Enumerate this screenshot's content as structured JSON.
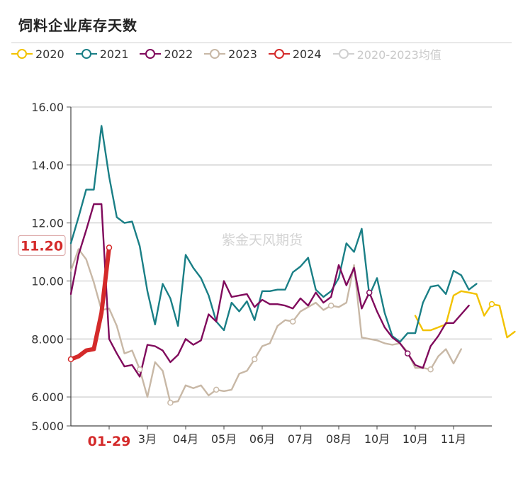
{
  "title": "饲料企业库存天数",
  "watermark": "紫金天风期货",
  "legend": [
    {
      "name": "2020",
      "color": "#f2c200",
      "faded": false
    },
    {
      "name": "2021",
      "color": "#1a7f86",
      "faded": false
    },
    {
      "name": "2022",
      "color": "#800a5c",
      "faded": false
    },
    {
      "name": "2023",
      "color": "#c8b8a6",
      "faded": false
    },
    {
      "name": "2024",
      "color": "#d42a2a",
      "faded": false
    },
    {
      "name": "2020-2023均值",
      "color": "#d0d0d0",
      "faded": true
    }
  ],
  "chart_data": {
    "type": "line",
    "title": "饲料企业库存天数",
    "ylim": [
      5.0,
      16.0
    ],
    "y_ticks": [
      "5.000",
      "6.000",
      "8.000",
      "10.00",
      "12.00",
      "14.00",
      "16.00"
    ],
    "x_ticks": [
      "01-29",
      "3月",
      "04月",
      "05月",
      "06月",
      "07月",
      "08月",
      "10月",
      "10月",
      "11月"
    ],
    "pointer": {
      "x_label": "01-29",
      "y_label": "11.20"
    },
    "series": [
      {
        "name": "2020",
        "color": "#f2c200",
        "values": [
          null,
          null,
          null,
          null,
          null,
          null,
          null,
          null,
          null,
          null,
          null,
          null,
          null,
          null,
          null,
          null,
          null,
          null,
          null,
          null,
          null,
          null,
          null,
          null,
          null,
          null,
          null,
          null,
          null,
          null,
          null,
          null,
          null,
          null,
          null,
          null,
          null,
          null,
          null,
          null,
          null,
          null,
          null,
          null,
          null,
          8.8,
          8.3,
          8.3,
          8.4,
          8.5,
          9.5,
          9.65,
          9.6,
          9.55,
          8.8,
          9.2,
          9.15,
          8.05,
          8.25
        ]
      },
      {
        "name": "2021",
        "color": "#1a7f86",
        "values": [
          11.3,
          12.2,
          13.15,
          13.15,
          15.35,
          13.6,
          12.2,
          12.0,
          12.05,
          11.2,
          9.65,
          8.5,
          9.9,
          9.4,
          8.45,
          10.9,
          10.45,
          10.1,
          9.5,
          8.6,
          8.3,
          9.25,
          8.95,
          9.3,
          8.65,
          9.65,
          9.65,
          9.7,
          9.7,
          10.3,
          10.5,
          10.8,
          9.7,
          9.45,
          9.65,
          10.1,
          11.3,
          11.0,
          11.8,
          9.5,
          10.1,
          8.9,
          8.1,
          7.9,
          8.2,
          8.2,
          9.25,
          9.8,
          9.85,
          9.55,
          10.35,
          10.2,
          9.7,
          9.9
        ]
      },
      {
        "name": "2022",
        "color": "#800a5c",
        "values": [
          9.55,
          10.9,
          11.75,
          12.65,
          12.65,
          8.0,
          7.5,
          7.05,
          7.1,
          6.7,
          7.8,
          7.75,
          7.6,
          7.2,
          7.45,
          8.0,
          7.8,
          7.95,
          8.85,
          8.6,
          10.0,
          9.45,
          9.5,
          9.55,
          9.1,
          9.35,
          9.2,
          9.2,
          9.15,
          9.05,
          9.4,
          9.15,
          9.6,
          9.25,
          9.45,
          10.55,
          9.85,
          10.45,
          9.05,
          9.6,
          8.95,
          8.4,
          8.05,
          7.85,
          7.5,
          7.1,
          7.0,
          7.75,
          8.1,
          8.55,
          8.55,
          8.85,
          9.15
        ]
      },
      {
        "name": "2023",
        "color": "#c8b8a6",
        "values": [
          10.35,
          11.1,
          10.75,
          9.95,
          9.0,
          9.05,
          8.45,
          7.5,
          7.6,
          6.95,
          6.0,
          7.2,
          6.9,
          5.8,
          5.85,
          6.4,
          6.3,
          6.4,
          6.05,
          6.25,
          6.2,
          6.25,
          6.8,
          6.9,
          7.3,
          7.75,
          7.85,
          8.45,
          8.65,
          8.6,
          8.95,
          9.1,
          9.25,
          9.0,
          9.15,
          9.1,
          9.25,
          10.55,
          8.05,
          8.0,
          7.95,
          7.85,
          7.8,
          7.85,
          7.55,
          7.0,
          7.0,
          6.95,
          7.4,
          7.65,
          7.15,
          7.65
        ]
      },
      {
        "name": "2024",
        "color": "#d42a2a",
        "values": [
          7.3,
          7.4,
          7.6,
          7.65,
          8.9,
          11.15
        ]
      }
    ]
  }
}
